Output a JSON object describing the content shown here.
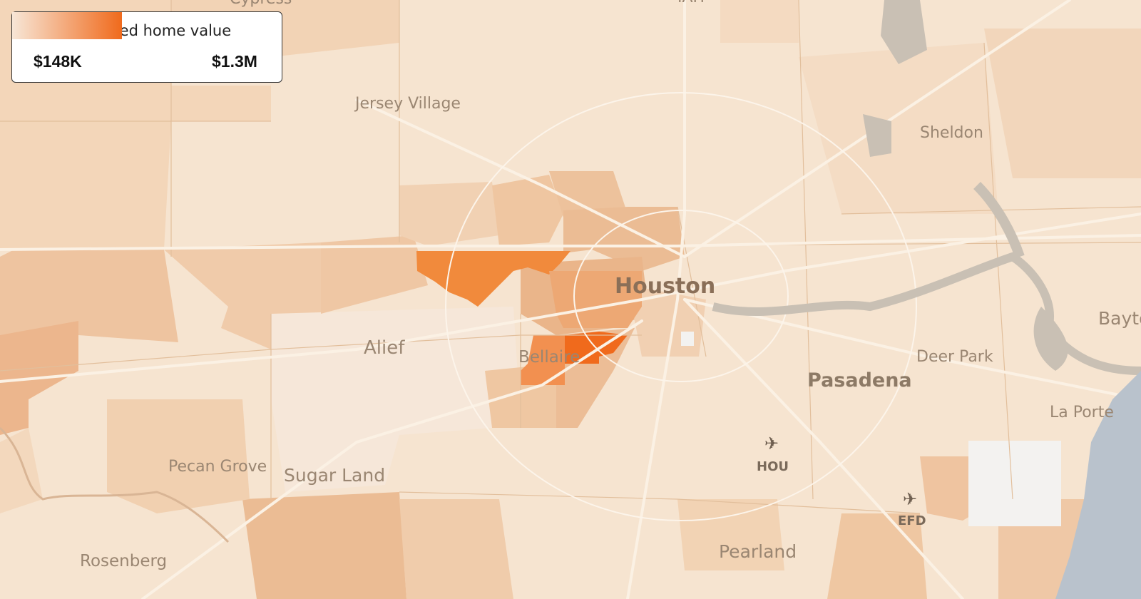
{
  "legend": {
    "title": "Estimated home value",
    "min_label": "$148K",
    "max_label": "$1.3M",
    "color_low": "#f7e6d6",
    "color_high": "#f06a1c"
  },
  "places": {
    "jersey_village": "Jersey Village",
    "sheldon": "Sheldon",
    "houston": "Houston",
    "alief": "Alief",
    "bellaire": "Bellaire",
    "deer_park": "Deer Park",
    "pasadena": "Pasadena",
    "baytown": "Bayto",
    "la_porte": "La Porte",
    "pecan_grove": "Pecan Grove",
    "sugar_land": "Sugar Land",
    "rosenberg": "Rosenberg",
    "pearland": "Pearland",
    "cypress_partial": "Cypress",
    "iah_partial": "IAH"
  },
  "airports": {
    "hou": "HOU",
    "efd": "EFD",
    "icon": "airplane-icon"
  },
  "colors": {
    "base": "#f6e4d0",
    "water": "#c9c0b4",
    "bay": "#b9c2cc",
    "road": "#fbf1e4",
    "boundary": "#e2bf9c",
    "lightest": "#f2f0ee"
  }
}
